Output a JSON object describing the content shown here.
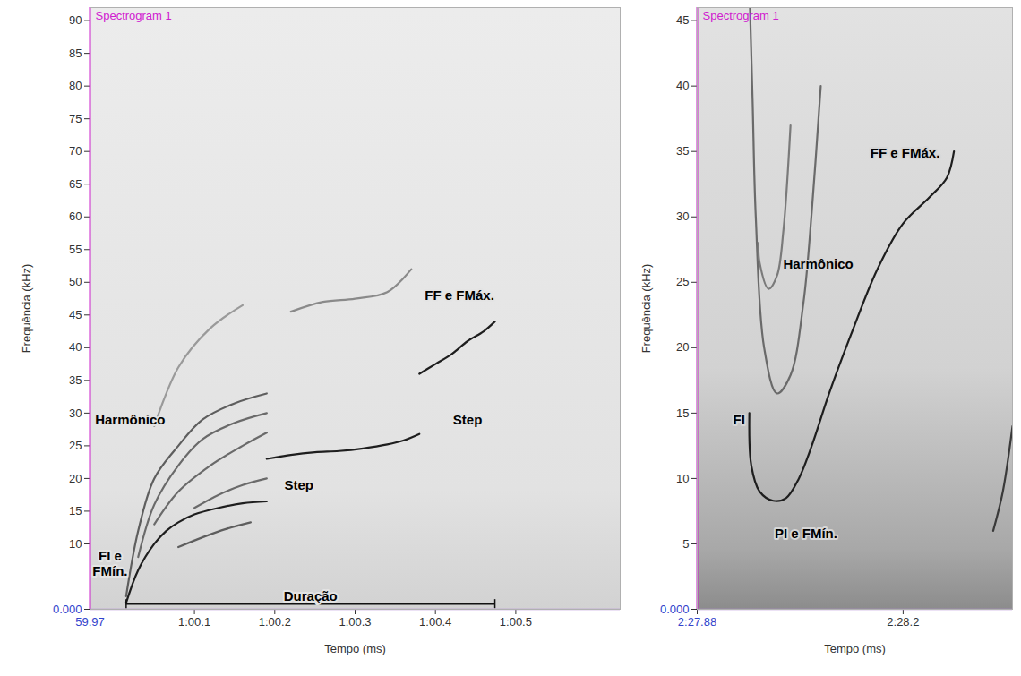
{
  "chart_data": [
    {
      "type": "line",
      "title": "Spectrogram 1",
      "x_label": "Tempo (ms)",
      "y_label": "Frequência (kHz)",
      "xlim": [
        59.97,
        60.63
      ],
      "xticks": [
        59.97,
        {
          "value": 60.1,
          "label": "1:00.1"
        },
        {
          "value": 60.2,
          "label": "1:00.2"
        },
        {
          "value": 60.3,
          "label": "1:00.3"
        },
        {
          "value": 60.4,
          "label": "1:00.4"
        },
        {
          "value": 60.5,
          "label": "1:00.5"
        }
      ],
      "ylim": [
        0,
        92
      ],
      "yticks": [
        {
          "value": 0,
          "label": "0.000"
        },
        10,
        15,
        20,
        25,
        30,
        35,
        40,
        45,
        50,
        55,
        60,
        65,
        70,
        75,
        80,
        85,
        90
      ],
      "series": [
        {
          "color": "#1e1e1e",
          "x": [
            60.015,
            60.03,
            60.05,
            60.065,
            60.08,
            60.1,
            60.13,
            60.16,
            60.19
          ],
          "values": [
            1,
            6,
            10,
            12,
            13.3,
            14.5,
            15.5,
            16.2,
            16.5
          ]
        },
        {
          "color": "#1e1e1e",
          "x": [
            60.19,
            60.22,
            60.25,
            60.28,
            60.31,
            60.34,
            60.36,
            60.38
          ],
          "values": [
            23,
            23.6,
            24,
            24.2,
            24.6,
            25.2,
            25.8,
            26.8
          ]
        },
        {
          "color": "#1e1e1e",
          "x": [
            60.38,
            60.4,
            60.42,
            60.44,
            60.46,
            60.474
          ],
          "values": [
            36,
            37.5,
            39,
            41,
            42.5,
            44
          ]
        },
        {
          "color": "#5e5e5e",
          "x": [
            60.015,
            60.03,
            60.05,
            60.08,
            60.11,
            60.15,
            60.19
          ],
          "values": [
            2,
            12,
            20,
            25,
            29,
            31.5,
            33
          ]
        },
        {
          "color": "#6a6a6a",
          "x": [
            60.03,
            60.05,
            60.08,
            60.11,
            60.15,
            60.19
          ],
          "values": [
            8,
            16,
            22,
            26,
            28.5,
            30
          ]
        },
        {
          "color": "#6a6a6a",
          "x": [
            60.05,
            60.08,
            60.12,
            60.16,
            60.19
          ],
          "values": [
            13,
            18,
            22,
            25,
            27
          ]
        },
        {
          "color": "#5e5e5e",
          "x": [
            60.08,
            60.11,
            60.14,
            60.17
          ],
          "values": [
            9.5,
            11,
            12.3,
            13.3
          ]
        },
        {
          "color": "#6a6a6a",
          "x": [
            60.1,
            60.13,
            60.16,
            60.19
          ],
          "values": [
            15.5,
            17.5,
            19,
            20
          ]
        },
        {
          "color": "#9a9a9a",
          "x": [
            60.05,
            60.08,
            60.12,
            60.16
          ],
          "values": [
            28,
            37,
            43,
            46.5
          ]
        },
        {
          "color": "#8a8a8a",
          "x": [
            60.22,
            60.26,
            60.3,
            60.34,
            60.37
          ],
          "values": [
            45.5,
            47,
            47.5,
            48.5,
            52
          ]
        }
      ],
      "annotations": [
        {
          "text": "Harmônico",
          "x": 60.02,
          "y": 29
        },
        {
          "text": "FI e\nFMín.",
          "x": 59.995,
          "y": 7
        },
        {
          "text": "FF e FMáx.",
          "x": 60.43,
          "y": 48
        },
        {
          "text": "Step",
          "x": 60.44,
          "y": 29
        },
        {
          "text": "Step",
          "x": 60.23,
          "y": 19
        }
      ],
      "brackets": [
        {
          "text": "Duração",
          "x": [
            60.015,
            60.474
          ],
          "y": 0.8
        }
      ]
    },
    {
      "type": "line",
      "title": "Spectrogram 1",
      "x_label": "Tempo (ms)",
      "y_label": "Frequência (kHz)",
      "xlim": [
        147.88,
        148.37
      ],
      "xticks": [
        {
          "value": 147.88,
          "label": "2:27.88"
        },
        {
          "value": 148.2,
          "label": "2:28.2"
        }
      ],
      "ylim": [
        0,
        46
      ],
      "yticks": [
        {
          "value": 0,
          "label": "0.000"
        },
        5,
        10,
        15,
        20,
        25,
        30,
        35,
        40,
        45
      ],
      "series": [
        {
          "color": "#1e1e1e",
          "x": [
            147.961,
            147.964,
            147.977,
            147.998,
            148.018,
            148.038,
            148.058,
            148.085,
            148.119,
            148.16,
            148.2,
            148.241,
            148.268,
            148.279
          ],
          "values": [
            15,
            11,
            9,
            8.3,
            8.5,
            10,
            12.5,
            16.5,
            21,
            26,
            29.5,
            31.5,
            33,
            35
          ]
        },
        {
          "color": "#6a6a6a",
          "x": [
            147.962,
            147.966,
            147.971,
            147.984,
            148.004,
            148.025,
            148.045,
            148.058,
            148.072
          ],
          "values": [
            46,
            39,
            30,
            20,
            16.5,
            17.9,
            23.4,
            30.4,
            40
          ]
        },
        {
          "color": "#7a7a7a",
          "x": [
            147.975,
            147.977,
            147.991,
            148.004,
            148.014,
            148.025
          ],
          "values": [
            28,
            26.5,
            24.5,
            25.5,
            29,
            37
          ]
        },
        {
          "color": "#3a3a3a",
          "x": [
            148.34,
            148.355,
            148.37
          ],
          "values": [
            6,
            9,
            14
          ]
        }
      ],
      "annotations": [
        {
          "text": "Harmônico",
          "x": 148.068,
          "y": 26.4
        },
        {
          "text": "FF e FMáx.",
          "x": 148.203,
          "y": 34.9
        },
        {
          "text": "FI",
          "x": 147.945,
          "y": 14.5
        },
        {
          "text": "PI e FMín.",
          "x": 148.049,
          "y": 5.8
        }
      ]
    }
  ]
}
